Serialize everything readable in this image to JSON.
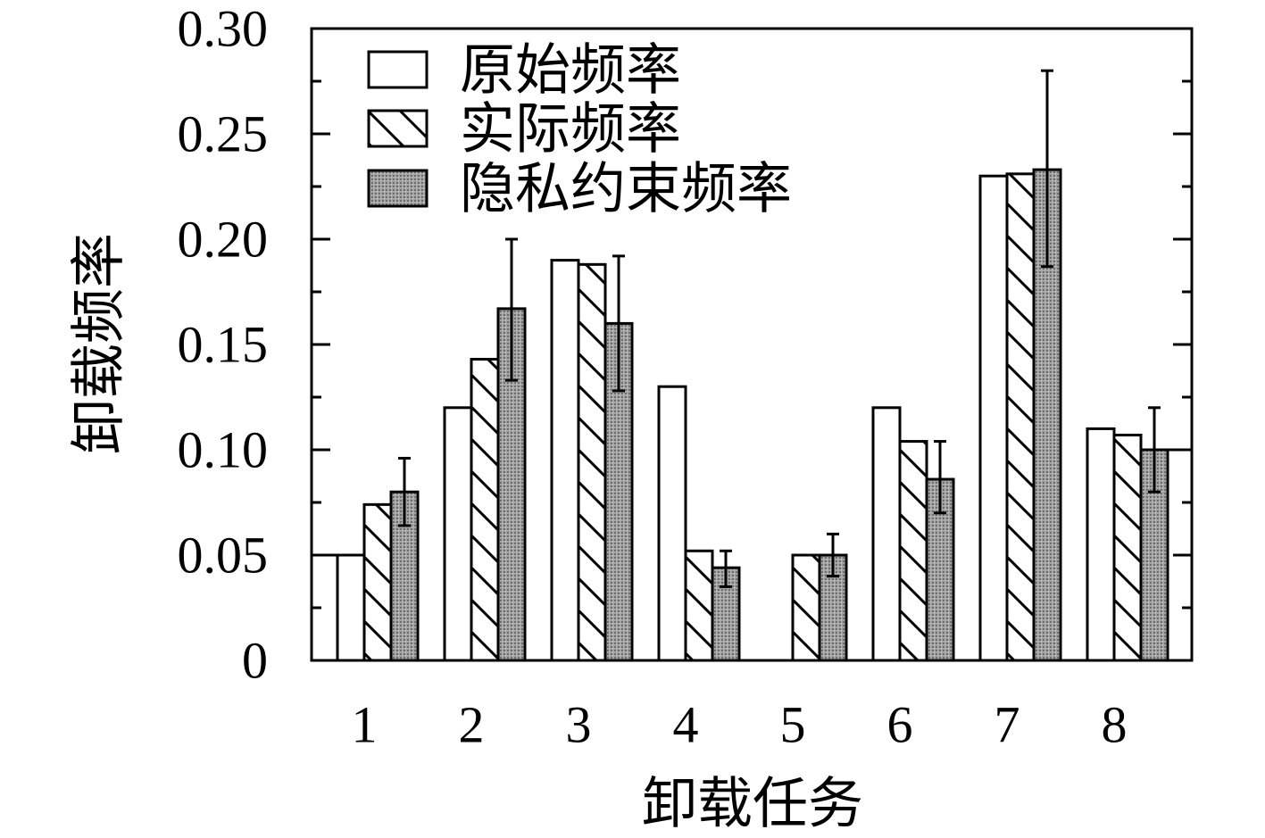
{
  "chart_data": {
    "type": "bar",
    "categories": [
      "1",
      "2",
      "3",
      "4",
      "5",
      "6",
      "7",
      "8"
    ],
    "series": [
      {
        "name": "原始频率",
        "values": [
          0.05,
          0.12,
          0.19,
          0.13,
          0,
          0.12,
          0.23,
          0.11
        ]
      },
      {
        "name": "实际频率",
        "values": [
          0.074,
          0.143,
          0.188,
          0.052,
          0.05,
          0.104,
          0.231,
          0.107
        ]
      },
      {
        "name": "隐私约束频率",
        "values": [
          0.08,
          0.167,
          0.16,
          0.044,
          0.05,
          0.086,
          0.233,
          0.1
        ],
        "error_low": [
          0.064,
          0.133,
          0.128,
          0.035,
          0.04,
          0.07,
          0.187,
          0.08
        ],
        "error_high": [
          0.096,
          0.2,
          0.192,
          0.052,
          0.06,
          0.104,
          0.28,
          0.12
        ]
      }
    ],
    "clipped_edge_values": {
      "left": 0.05,
      "right": 0.1
    },
    "xlabel": "卸载任务",
    "ylabel": "卸载频率",
    "ylim": [
      0,
      0.3
    ],
    "yticks": [
      0,
      0.05,
      0.1,
      0.15,
      0.2,
      0.25,
      0.3
    ],
    "ytick_labels": [
      "0",
      "0.05",
      "0.10",
      "0.15",
      "0.20",
      "0.25",
      "0.30"
    ],
    "grid": false,
    "legend": "top-left"
  },
  "colors": {
    "outline": "#000000",
    "original_fill": "#ffffff",
    "hatch_line": "#000000",
    "privacy_fill": "#a3a3a3",
    "privacy_dot": "#6e6e6e"
  }
}
